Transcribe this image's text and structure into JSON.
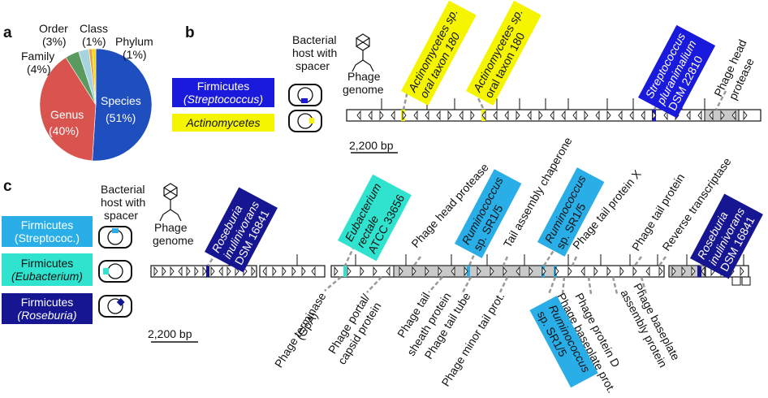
{
  "panels": {
    "a": "a",
    "b": "b",
    "c": "c"
  },
  "chart_data": {
    "type": "pie",
    "categories": [
      "Species",
      "Genus",
      "Family",
      "Order",
      "Class",
      "Phylum"
    ],
    "values": [
      51,
      40,
      4,
      3,
      1,
      1
    ],
    "labels": [
      "Species (51%)",
      "Genus (40%)",
      "Family (4%)",
      "Order (3%)",
      "Class (1%)",
      "Phylum (1%)"
    ],
    "colors": [
      "#1f4fbf",
      "#d9544f",
      "#5a9a5e",
      "#a7d3e0",
      "#e9a43a",
      "#f5d800"
    ]
  },
  "pie_text": {
    "species": "Species",
    "species_pct": "(51%)",
    "genus": "Genus",
    "genus_pct": "(40%)",
    "family": "Family",
    "family_pct": "(4%)",
    "order": "Order",
    "order_pct": "(3%)",
    "class": "Class",
    "class_pct": "(1%)",
    "phylum": "Phylum",
    "phylum_pct": "(1%)"
  },
  "b": {
    "host_label": [
      "Bacterial",
      "host with",
      "spacer"
    ],
    "phage_label": [
      "Phage",
      "genome"
    ],
    "legend": [
      {
        "main": "Firmicutes",
        "sub": "(Streptococcus)",
        "color": "#1a1adc",
        "text_color": "#ffffff"
      },
      {
        "main": "Actinomycetes",
        "sub": "",
        "color": "#f5f500",
        "text_color": "#111111"
      }
    ],
    "annotations": [
      {
        "lines": [
          "Actinomycetes sp.",
          "oral taxon 180"
        ],
        "color": "#f5f500",
        "text_color": "#111111"
      },
      {
        "lines": [
          "Actinomycetes sp.",
          "oral taxon 180"
        ],
        "color": "#f5f500",
        "text_color": "#111111"
      },
      {
        "lines": [
          "Streptococcus",
          "pluranimalium",
          "DSM 22810"
        ],
        "color": "#1a1adc",
        "text_color": "#ffffff"
      }
    ],
    "gene_label": [
      "Phage head",
      "protease"
    ],
    "scale": "2,200 bp"
  },
  "c": {
    "host_label": [
      "Bacterial",
      "host with",
      "spacer"
    ],
    "phage_label": [
      "Phage",
      "genome"
    ],
    "legend": [
      {
        "main": "Firmicutes",
        "sub": "(Streptococ.)",
        "color": "#29aee8",
        "text_color": "#ffffff"
      },
      {
        "main": "Firmicutes",
        "sub": "(Eubacterium)",
        "color": "#2fe3cf",
        "text_color": "#111111"
      },
      {
        "main": "Firmicutes",
        "sub": "(Roseburia)",
        "color": "#161693",
        "text_color": "#ffffff"
      }
    ],
    "annotations": [
      {
        "lines": [
          "Roseburia",
          "inulinivorans",
          "DSM 16841"
        ],
        "color": "#161693",
        "text_color": "#ffffff"
      },
      {
        "lines": [
          "Eubacterium",
          "rectale",
          "ATCC 33656"
        ],
        "color": "#2fe3cf",
        "text_color": "#111111"
      },
      {
        "lines": [
          "Ruminococcus",
          "sp. SR1/5"
        ],
        "color": "#29aee8",
        "text_color": "#111111"
      },
      {
        "lines": [
          "Ruminococcus",
          "sp. SR1/5"
        ],
        "color": "#29aee8",
        "text_color": "#111111"
      },
      {
        "lines": [
          "Roseburia",
          "inulinivorans",
          "DSM 16841"
        ],
        "color": "#161693",
        "text_color": "#ffffff"
      },
      {
        "lines": [
          "Ruminococcus",
          "sp. SR1/5"
        ],
        "color": "#29aee8",
        "text_color": "#111111"
      }
    ],
    "top_genes": [
      "Phage head protease",
      "Tail assembly chaperone",
      "Phage tail protein X",
      "Phage tail protein",
      "Reverse transcriptase"
    ],
    "bottom_genes": [
      [
        "Phage terminase",
        "(GpA)"
      ],
      [
        "Phage portal/",
        "capsid protein"
      ],
      [
        "Phage tail",
        "sheath protein"
      ],
      [
        "Phage tail tube"
      ],
      [
        "Phage minor tail prot."
      ],
      [
        "Phage baseplate prot."
      ],
      [
        "Phage protein D"
      ],
      [
        "Phage baseplate",
        "assembly protein"
      ]
    ],
    "scale": "2,200 bp"
  }
}
